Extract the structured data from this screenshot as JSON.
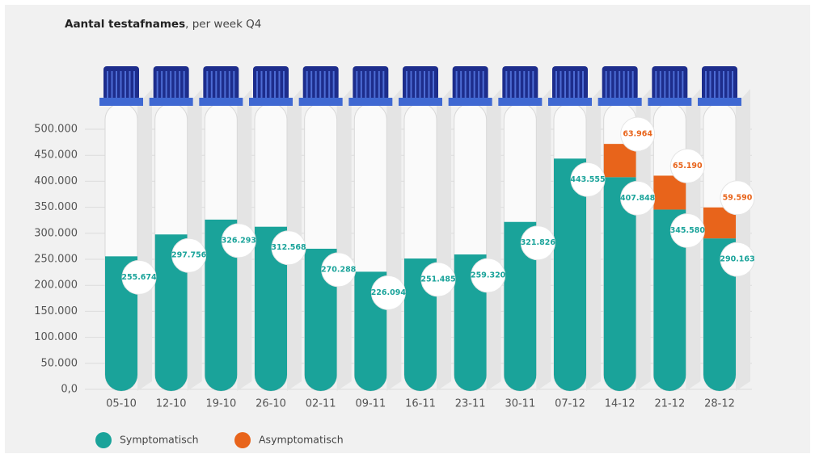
{
  "chart_data": {
    "type": "stacked_bar",
    "title": "Aantal testafnames",
    "title_suffix": ", per week Q4",
    "categories": [
      "05-10",
      "12-10",
      "19-10",
      "26-10",
      "02-11",
      "09-11",
      "16-11",
      "23-11",
      "30-11",
      "07-12",
      "14-12",
      "21-12",
      "28-12"
    ],
    "series": [
      {
        "name": "Symptomatisch",
        "color": "#1aa39a",
        "values": [
          255674,
          297756,
          326293,
          312568,
          270288,
          226094,
          251485,
          259320,
          321826,
          443555,
          407848,
          345580,
          290163
        ],
        "value_labels": [
          "255.674",
          "297.756",
          "326.293",
          "312.568",
          "270.288",
          "226.094",
          "251.485",
          "259.320",
          "321.826",
          "443.555",
          "407.848",
          "345.580",
          "290.163"
        ]
      },
      {
        "name": "Asymptomatisch",
        "color": "#e8641b",
        "values": [
          null,
          null,
          null,
          null,
          null,
          null,
          null,
          null,
          null,
          null,
          63964,
          65190,
          59590
        ],
        "value_labels": [
          null,
          null,
          null,
          null,
          null,
          null,
          null,
          null,
          null,
          null,
          "63.964",
          "65.190",
          "59.590"
        ]
      }
    ],
    "ylim": [
      0,
      500000
    ],
    "yticks": [
      {
        "value": 0,
        "label": "0,0"
      },
      {
        "value": 50000,
        "label": "50.000"
      },
      {
        "value": 100000,
        "label": "100.000"
      },
      {
        "value": 150000,
        "label": "150.000"
      },
      {
        "value": 200000,
        "label": "200.000"
      },
      {
        "value": 250000,
        "label": "250.000"
      },
      {
        "value": 300000,
        "label": "300.000"
      },
      {
        "value": 350000,
        "label": "350.000"
      },
      {
        "value": 400000,
        "label": "400.000"
      },
      {
        "value": 450000,
        "label": "450.000"
      },
      {
        "value": 500000,
        "label": "500.000"
      }
    ],
    "grid": true
  }
}
